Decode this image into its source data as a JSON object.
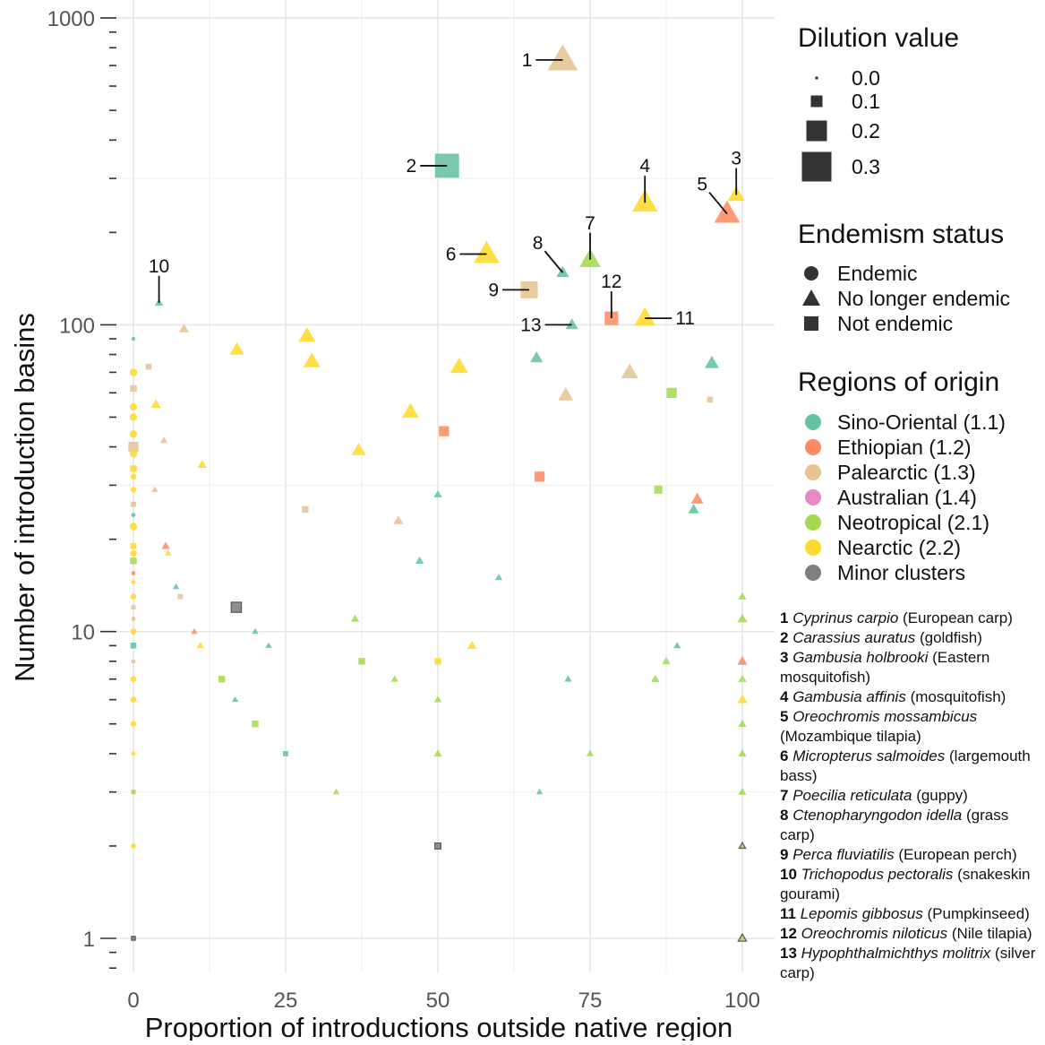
{
  "chart_data": {
    "type": "scatter",
    "xlabel": "Proportion of introductions outside native region",
    "ylabel": "Number of introduction basins",
    "xlim": [
      -3,
      105
    ],
    "ylim": [
      0.8,
      1050
    ],
    "y_scale": "log10",
    "x_ticks": [
      0,
      25,
      50,
      75,
      100
    ],
    "x_tick_labels": [
      "0",
      "25",
      "50",
      "75",
      "100"
    ],
    "y_ticks": [
      1,
      10,
      100,
      1000
    ],
    "y_tick_labels": [
      "1",
      "10",
      "100",
      "1000"
    ],
    "grid": true,
    "colors": {
      "Sino-Oriental": "#66c2a5",
      "Ethiopian": "#fc8d62",
      "Palearctic": "#e5c494",
      "Australian": "#e78ac3",
      "Neotropical": "#a6d854",
      "Nearctic": "#ffd92f",
      "Minor clusters": "#7f7f7f"
    },
    "legends": {
      "dilution": {
        "title": "Dilution value",
        "items": [
          {
            "label": "0.0",
            "value": 0.0
          },
          {
            "label": "0.1",
            "value": 0.1
          },
          {
            "label": "0.2",
            "value": 0.2
          },
          {
            "label": "0.3",
            "value": 0.3
          }
        ]
      },
      "endemism": {
        "title": "Endemism status",
        "items": [
          {
            "label": "Endemic",
            "shape": "circle"
          },
          {
            "label": "No longer endemic",
            "shape": "triangle"
          },
          {
            "label": "Not endemic",
            "shape": "square"
          }
        ]
      },
      "regions": {
        "title": "Regions of origin",
        "items": [
          {
            "label": "Sino-Oriental (1.1)",
            "region": "Sino-Oriental"
          },
          {
            "label": "Ethiopian (1.2)",
            "region": "Ethiopian"
          },
          {
            "label": "Palearctic (1.3)",
            "region": "Palearctic"
          },
          {
            "label": "Australian (1.4)",
            "region": "Australian"
          },
          {
            "label": "Neotropical (2.1)",
            "region": "Neotropical"
          },
          {
            "label": "Nearctic (2.2)",
            "region": "Nearctic"
          },
          {
            "label": "Minor clusters",
            "region": "Minor clusters"
          }
        ]
      }
    },
    "labeled_points": [
      {
        "id": "1",
        "x": 70.5,
        "y": 730,
        "region": "Palearctic",
        "shape": "triangle",
        "dilution": 0.3,
        "label_side": "left"
      },
      {
        "id": "2",
        "x": 51.5,
        "y": 330,
        "region": "Sino-Oriental",
        "shape": "square",
        "dilution": 0.3,
        "label_side": "left"
      },
      {
        "id": "3",
        "x": 99,
        "y": 265,
        "region": "Nearctic",
        "shape": "triangle",
        "dilution": 0.15,
        "label_side": "above"
      },
      {
        "id": "4",
        "x": 84,
        "y": 250,
        "region": "Nearctic",
        "shape": "triangle",
        "dilution": 0.25,
        "label_side": "above"
      },
      {
        "id": "5",
        "x": 97.5,
        "y": 230,
        "region": "Ethiopian",
        "shape": "triangle",
        "dilution": 0.25,
        "label_side": "above-left"
      },
      {
        "id": "6",
        "x": 58,
        "y": 170,
        "region": "Nearctic",
        "shape": "triangle",
        "dilution": 0.25,
        "label_side": "left"
      },
      {
        "id": "7",
        "x": 75,
        "y": 163,
        "region": "Neotropical",
        "shape": "triangle",
        "dilution": 0.2,
        "label_side": "above"
      },
      {
        "id": "8",
        "x": 70.5,
        "y": 148,
        "region": "Sino-Oriental",
        "shape": "triangle",
        "dilution": 0.1,
        "label_side": "above-left"
      },
      {
        "id": "9",
        "x": 65,
        "y": 130,
        "region": "Palearctic",
        "shape": "square",
        "dilution": 0.2,
        "label_side": "left"
      },
      {
        "id": "10",
        "x": 4.2,
        "y": 118,
        "region": "Sino-Oriental",
        "shape": "triangle",
        "dilution": 0.05,
        "label_side": "above"
      },
      {
        "id": "11",
        "x": 84,
        "y": 105,
        "region": "Nearctic",
        "shape": "triangle",
        "dilution": 0.2,
        "label_side": "right"
      },
      {
        "id": "12",
        "x": 78.5,
        "y": 105,
        "region": "Ethiopian",
        "shape": "square",
        "dilution": 0.15,
        "label_side": "above"
      },
      {
        "id": "13",
        "x": 72,
        "y": 100,
        "region": "Sino-Oriental",
        "shape": "triangle",
        "dilution": 0.1,
        "label_side": "left"
      }
    ],
    "points": [
      {
        "x": 0,
        "y": 90,
        "region": "Sino-Oriental",
        "shape": "circle",
        "dilution": 0.0
      },
      {
        "x": 0,
        "y": 70,
        "region": "Nearctic",
        "shape": "circle",
        "dilution": 0.05
      },
      {
        "x": 0,
        "y": 62,
        "region": "Palearctic",
        "shape": "square",
        "dilution": 0.05
      },
      {
        "x": 0,
        "y": 54,
        "region": "Nearctic",
        "shape": "circle",
        "dilution": 0.05
      },
      {
        "x": 0,
        "y": 50,
        "region": "Nearctic",
        "shape": "circle",
        "dilution": 0.05
      },
      {
        "x": 0,
        "y": 44,
        "region": "Nearctic",
        "shape": "circle",
        "dilution": 0.05
      },
      {
        "x": 0,
        "y": 40,
        "region": "Palearctic",
        "shape": "square",
        "dilution": 0.1
      },
      {
        "x": 0,
        "y": 38,
        "region": "Nearctic",
        "shape": "circle",
        "dilution": 0.05
      },
      {
        "x": 0,
        "y": 34,
        "region": "Nearctic",
        "shape": "square",
        "dilution": 0.05
      },
      {
        "x": 0,
        "y": 32,
        "region": "Nearctic",
        "shape": "circle",
        "dilution": 0.03
      },
      {
        "x": 0,
        "y": 29,
        "region": "Nearctic",
        "shape": "circle",
        "dilution": 0.03
      },
      {
        "x": 0,
        "y": 26,
        "region": "Palearctic",
        "shape": "square",
        "dilution": 0.03
      },
      {
        "x": 0,
        "y": 24,
        "region": "Sino-Oriental",
        "shape": "circle",
        "dilution": 0.01
      },
      {
        "x": 0,
        "y": 22,
        "region": "Nearctic",
        "shape": "circle",
        "dilution": 0.05
      },
      {
        "x": 0,
        "y": 19,
        "region": "Nearctic",
        "shape": "square",
        "dilution": 0.04
      },
      {
        "x": 0,
        "y": 18,
        "region": "Nearctic",
        "shape": "circle",
        "dilution": 0.04
      },
      {
        "x": 0,
        "y": 17,
        "region": "Neotropical",
        "shape": "square",
        "dilution": 0.05
      },
      {
        "x": 0,
        "y": 15.5,
        "region": "Ethiopian",
        "shape": "circle",
        "dilution": 0.01
      },
      {
        "x": 0,
        "y": 14.5,
        "region": "Nearctic",
        "shape": "circle",
        "dilution": 0.01
      },
      {
        "x": 0,
        "y": 13,
        "region": "Nearctic",
        "shape": "circle",
        "dilution": 0.03
      },
      {
        "x": 0,
        "y": 12,
        "region": "Palearctic",
        "shape": "square",
        "dilution": 0.02
      },
      {
        "x": 0,
        "y": 11,
        "region": "Palearctic",
        "shape": "circle",
        "dilution": 0.01
      },
      {
        "x": 0,
        "y": 10,
        "region": "Nearctic",
        "shape": "circle",
        "dilution": 0.03
      },
      {
        "x": 0,
        "y": 9,
        "region": "Sino-Oriental",
        "shape": "square",
        "dilution": 0.04
      },
      {
        "x": 0,
        "y": 8,
        "region": "Palearctic",
        "shape": "circle",
        "dilution": 0.01
      },
      {
        "x": 0,
        "y": 7,
        "region": "Nearctic",
        "shape": "circle",
        "dilution": 0.03
      },
      {
        "x": 0,
        "y": 6,
        "region": "Nearctic",
        "shape": "circle",
        "dilution": 0.03
      },
      {
        "x": 0,
        "y": 5,
        "region": "Nearctic",
        "shape": "circle",
        "dilution": 0.03
      },
      {
        "x": 0,
        "y": 4,
        "region": "Nearctic",
        "shape": "circle",
        "dilution": 0.01
      },
      {
        "x": 0,
        "y": 3,
        "region": "Neotropical",
        "shape": "square",
        "dilution": 0.02
      },
      {
        "x": 0,
        "y": 2,
        "region": "Nearctic",
        "shape": "circle",
        "dilution": 0.02
      },
      {
        "x": 0,
        "y": 1,
        "region": "Minor clusters",
        "shape": "square",
        "dilution": 0.01
      },
      {
        "x": 2.5,
        "y": 73,
        "region": "Palearctic",
        "shape": "square",
        "dilution": 0.04
      },
      {
        "x": 3.5,
        "y": 29,
        "region": "Palearctic",
        "shape": "triangle",
        "dilution": 0.03
      },
      {
        "x": 3.7,
        "y": 55,
        "region": "Nearctic",
        "shape": "triangle",
        "dilution": 0.07
      },
      {
        "x": 5,
        "y": 42,
        "region": "Palearctic",
        "shape": "triangle",
        "dilution": 0.04
      },
      {
        "x": 5.3,
        "y": 19,
        "region": "Ethiopian",
        "shape": "triangle",
        "dilution": 0.05
      },
      {
        "x": 5.7,
        "y": 18,
        "region": "Nearctic",
        "shape": "triangle",
        "dilution": 0.03
      },
      {
        "x": 7,
        "y": 14,
        "region": "Sino-Oriental",
        "shape": "triangle",
        "dilution": 0.03
      },
      {
        "x": 7.7,
        "y": 13,
        "region": "Palearctic",
        "shape": "square",
        "dilution": 0.03
      },
      {
        "x": 8.3,
        "y": 97,
        "region": "Palearctic",
        "shape": "triangle",
        "dilution": 0.07
      },
      {
        "x": 10,
        "y": 10,
        "region": "Ethiopian",
        "shape": "triangle",
        "dilution": 0.03
      },
      {
        "x": 11,
        "y": 9,
        "region": "Nearctic",
        "shape": "triangle",
        "dilution": 0.04
      },
      {
        "x": 11.3,
        "y": 35,
        "region": "Nearctic",
        "shape": "triangle",
        "dilution": 0.06
      },
      {
        "x": 14.5,
        "y": 7,
        "region": "Neotropical",
        "shape": "square",
        "dilution": 0.05
      },
      {
        "x": 16.7,
        "y": 6,
        "region": "Sino-Oriental",
        "shape": "triangle",
        "dilution": 0.03
      },
      {
        "x": 16.9,
        "y": 12,
        "region": "Minor clusters",
        "shape": "square",
        "dilution": 0.1
      },
      {
        "x": 17,
        "y": 83,
        "region": "Nearctic",
        "shape": "triangle",
        "dilution": 0.12
      },
      {
        "x": 20,
        "y": 10,
        "region": "Sino-Oriental",
        "shape": "triangle",
        "dilution": 0.03
      },
      {
        "x": 20,
        "y": 5,
        "region": "Neotropical",
        "shape": "square",
        "dilution": 0.05
      },
      {
        "x": 22.2,
        "y": 9,
        "region": "Sino-Oriental",
        "shape": "triangle",
        "dilution": 0.03
      },
      {
        "x": 25,
        "y": 4,
        "region": "Sino-Oriental",
        "shape": "square",
        "dilution": 0.03
      },
      {
        "x": 28.2,
        "y": 25,
        "region": "Palearctic",
        "shape": "square",
        "dilution": 0.05
      },
      {
        "x": 28.5,
        "y": 92,
        "region": "Nearctic",
        "shape": "triangle",
        "dilution": 0.15
      },
      {
        "x": 29.3,
        "y": 76,
        "region": "Nearctic",
        "shape": "triangle",
        "dilution": 0.15
      },
      {
        "x": 33.3,
        "y": 3,
        "region": "Neotropical",
        "shape": "triangle",
        "dilution": 0.03
      },
      {
        "x": 36.4,
        "y": 11,
        "region": "Neotropical",
        "shape": "triangle",
        "dilution": 0.05
      },
      {
        "x": 37,
        "y": 39,
        "region": "Nearctic",
        "shape": "triangle",
        "dilution": 0.12
      },
      {
        "x": 37.5,
        "y": 8,
        "region": "Neotropical",
        "shape": "square",
        "dilution": 0.05
      },
      {
        "x": 42.9,
        "y": 7,
        "region": "Neotropical",
        "shape": "triangle",
        "dilution": 0.04
      },
      {
        "x": 43.5,
        "y": 23,
        "region": "Palearctic",
        "shape": "triangle",
        "dilution": 0.07
      },
      {
        "x": 45.5,
        "y": 52,
        "region": "Nearctic",
        "shape": "triangle",
        "dilution": 0.15
      },
      {
        "x": 47,
        "y": 17,
        "region": "Sino-Oriental",
        "shape": "triangle",
        "dilution": 0.05
      },
      {
        "x": 50,
        "y": 28,
        "region": "Sino-Oriental",
        "shape": "triangle",
        "dilution": 0.05
      },
      {
        "x": 50,
        "y": 8,
        "region": "Nearctic",
        "shape": "square",
        "dilution": 0.05
      },
      {
        "x": 50,
        "y": 6,
        "region": "Neotropical",
        "shape": "triangle",
        "dilution": 0.04
      },
      {
        "x": 50,
        "y": 4,
        "region": "Neotropical",
        "shape": "triangle",
        "dilution": 0.05
      },
      {
        "x": 50,
        "y": 2,
        "region": "Minor clusters",
        "shape": "square",
        "dilution": 0.04
      },
      {
        "x": 51,
        "y": 45,
        "region": "Ethiopian",
        "shape": "square",
        "dilution": 0.1
      },
      {
        "x": 53.5,
        "y": 73,
        "region": "Nearctic",
        "shape": "triangle",
        "dilution": 0.16
      },
      {
        "x": 55.6,
        "y": 9,
        "region": "Nearctic",
        "shape": "triangle",
        "dilution": 0.06
      },
      {
        "x": 60,
        "y": 15,
        "region": "Sino-Oriental",
        "shape": "triangle",
        "dilution": 0.04
      },
      {
        "x": 66.2,
        "y": 78,
        "region": "Sino-Oriental",
        "shape": "triangle",
        "dilution": 0.1
      },
      {
        "x": 66.7,
        "y": 32,
        "region": "Ethiopian",
        "shape": "square",
        "dilution": 0.1
      },
      {
        "x": 66.7,
        "y": 3,
        "region": "Sino-Oriental",
        "shape": "triangle",
        "dilution": 0.03
      },
      {
        "x": 71,
        "y": 59,
        "region": "Palearctic",
        "shape": "triangle",
        "dilution": 0.13
      },
      {
        "x": 71.4,
        "y": 7,
        "region": "Sino-Oriental",
        "shape": "triangle",
        "dilution": 0.04
      },
      {
        "x": 75,
        "y": 4,
        "region": "Neotropical",
        "shape": "triangle",
        "dilution": 0.04
      },
      {
        "x": 81.5,
        "y": 70,
        "region": "Palearctic",
        "shape": "triangle",
        "dilution": 0.15
      },
      {
        "x": 85.7,
        "y": 7,
        "region": "Neotropical",
        "shape": "triangle",
        "dilution": 0.05
      },
      {
        "x": 86.2,
        "y": 29,
        "region": "Neotropical",
        "shape": "square",
        "dilution": 0.07
      },
      {
        "x": 87.5,
        "y": 8,
        "region": "Neotropical",
        "shape": "triangle",
        "dilution": 0.05
      },
      {
        "x": 88.4,
        "y": 60,
        "region": "Neotropical",
        "shape": "square",
        "dilution": 0.1
      },
      {
        "x": 89.3,
        "y": 9,
        "region": "Sino-Oriental",
        "shape": "triangle",
        "dilution": 0.04
      },
      {
        "x": 92,
        "y": 25,
        "region": "Sino-Oriental",
        "shape": "triangle",
        "dilution": 0.08
      },
      {
        "x": 92.6,
        "y": 27,
        "region": "Ethiopian",
        "shape": "triangle",
        "dilution": 0.1
      },
      {
        "x": 94.7,
        "y": 57,
        "region": "Palearctic",
        "shape": "square",
        "dilution": 0.04
      },
      {
        "x": 95,
        "y": 75,
        "region": "Sino-Oriental",
        "shape": "triangle",
        "dilution": 0.12
      },
      {
        "x": 100,
        "y": 13,
        "region": "Neotropical",
        "shape": "triangle",
        "dilution": 0.05
      },
      {
        "x": 100,
        "y": 11,
        "region": "Neotropical",
        "shape": "triangle",
        "dilution": 0.07
      },
      {
        "x": 100,
        "y": 8,
        "region": "Ethiopian",
        "shape": "triangle",
        "dilution": 0.07
      },
      {
        "x": 100,
        "y": 7,
        "region": "Neotropical",
        "shape": "triangle",
        "dilution": 0.05
      },
      {
        "x": 100,
        "y": 6,
        "region": "Nearctic",
        "shape": "triangle",
        "dilution": 0.07
      },
      {
        "x": 100,
        "y": 5,
        "region": "Neotropical",
        "shape": "triangle",
        "dilution": 0.05
      },
      {
        "x": 100,
        "y": 4,
        "region": "Neotropical",
        "shape": "triangle",
        "dilution": 0.05
      },
      {
        "x": 100,
        "y": 3,
        "region": "Neotropical",
        "shape": "triangle",
        "dilution": 0.05
      },
      {
        "x": 100,
        "y": 2,
        "region": "Minor clusters",
        "shape": "triangle",
        "dilution": 0.03
      },
      {
        "x": 100,
        "y": 1,
        "region": "Minor clusters",
        "shape": "triangle",
        "dilution": 0.05
      }
    ],
    "species_key": [
      {
        "num": "1",
        "latin": "Cyprinus carpio",
        "common": "(European carp)"
      },
      {
        "num": "2",
        "latin": "Carassius auratus",
        "common": "(goldfish)"
      },
      {
        "num": "3",
        "latin": "Gambusia holbrooki",
        "common": "(Eastern mosquitofish)"
      },
      {
        "num": "4",
        "latin": "Gambusia affinis",
        "common": "(mosquitofish)"
      },
      {
        "num": "5",
        "latin": "Oreochromis mossambicus",
        "common": "(Mozambique tilapia)"
      },
      {
        "num": "6",
        "latin": "Micropterus salmoides",
        "common": "(largemouth bass)"
      },
      {
        "num": "7",
        "latin": "Poecilia reticulata",
        "common": "(guppy)"
      },
      {
        "num": "8",
        "latin": "Ctenopharyngodon idella",
        "common": "(grass carp)"
      },
      {
        "num": "9",
        "latin": "Perca fluviatilis",
        "common": "(European perch)"
      },
      {
        "num": "10",
        "latin": "Trichopodus pectoralis",
        "common": "(snakeskin gourami)"
      },
      {
        "num": "11",
        "latin": "Lepomis gibbosus",
        "common": "(Pumpkinseed)"
      },
      {
        "num": "12",
        "latin": "Oreochromis niloticus",
        "common": "(Nile tilapia)"
      },
      {
        "num": "13",
        "latin": "Hypophthalmichthys molitrix",
        "common": "(silver carp)"
      }
    ]
  }
}
